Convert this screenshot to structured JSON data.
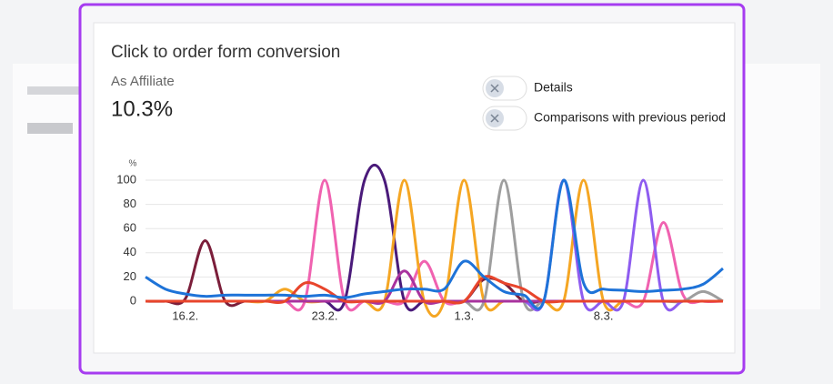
{
  "card": {
    "title": "Click to order form conversion",
    "subtitle": "As Affiliate",
    "value": "10.3%"
  },
  "toggles": [
    {
      "label": "Details"
    },
    {
      "label": "Comparisons with previous period"
    }
  ],
  "chart_data": {
    "type": "line",
    "y_label": "%",
    "categories": [
      null,
      null,
      "16.2.",
      null,
      null,
      null,
      null,
      null,
      null,
      "23.2.",
      null,
      null,
      null,
      null,
      null,
      null,
      "1.3.",
      null,
      null,
      null,
      null,
      null,
      null,
      "8.3.",
      null,
      null,
      null,
      null,
      null,
      null
    ],
    "ylim": [
      0,
      100
    ],
    "yticks": [
      0,
      20,
      40,
      60,
      80,
      100
    ],
    "grid": true,
    "series": [
      {
        "color": "#7b1e3a",
        "values": [
          0,
          0,
          2,
          50,
          0,
          0,
          0,
          0,
          0,
          0,
          0,
          0,
          0,
          0,
          0,
          0,
          0,
          18,
          15,
          0,
          0,
          0,
          0,
          0,
          0,
          0,
          0,
          0,
          0,
          0
        ]
      },
      {
        "color": "#f062b0",
        "values": [
          0,
          0,
          0,
          0,
          0,
          0,
          0,
          0,
          0,
          100,
          0,
          0,
          0,
          0,
          33,
          0,
          0,
          0,
          0,
          0,
          0,
          0,
          0,
          0,
          0,
          0,
          65,
          5,
          0,
          0
        ]
      },
      {
        "color": "#4a1a7a",
        "values": [
          0,
          0,
          0,
          0,
          0,
          0,
          0,
          0,
          0,
          0,
          0,
          100,
          100,
          0,
          0,
          0,
          0,
          0,
          0,
          0,
          0,
          0,
          0,
          0,
          0,
          0,
          0,
          0,
          0,
          0
        ]
      },
      {
        "color": "#f5a623",
        "values": [
          0,
          0,
          0,
          0,
          0,
          0,
          0,
          10,
          0,
          0,
          0,
          0,
          0,
          100,
          0,
          0,
          100,
          0,
          0,
          0,
          0,
          0,
          100,
          0,
          0,
          0,
          0,
          0,
          0,
          0
        ]
      },
      {
        "color": "#9e9e9e",
        "values": [
          0,
          0,
          0,
          0,
          0,
          0,
          0,
          0,
          0,
          0,
          0,
          0,
          0,
          0,
          0,
          0,
          0,
          0,
          100,
          0,
          0,
          0,
          0,
          0,
          0,
          0,
          0,
          0,
          8,
          0
        ]
      },
      {
        "color": "#8e5cf0",
        "values": [
          0,
          0,
          0,
          0,
          0,
          0,
          0,
          0,
          0,
          0,
          0,
          0,
          0,
          0,
          0,
          0,
          0,
          0,
          0,
          0,
          0,
          100,
          0,
          0,
          0,
          100,
          0,
          0,
          0,
          0
        ]
      },
      {
        "color": "#a8329e",
        "values": [
          0,
          0,
          0,
          0,
          0,
          0,
          0,
          0,
          0,
          0,
          0,
          0,
          0,
          25,
          0,
          0,
          0,
          0,
          0,
          0,
          0,
          0,
          0,
          0,
          0,
          0,
          0,
          0,
          0,
          0
        ]
      },
      {
        "color": "#e8452c",
        "values": [
          0,
          0,
          0,
          0,
          0,
          0,
          0,
          0,
          15,
          10,
          0,
          0,
          0,
          0,
          0,
          0,
          0,
          20,
          15,
          10,
          0,
          0,
          0,
          0,
          0,
          0,
          0,
          0,
          0,
          0
        ]
      },
      {
        "color": "#1e73d8",
        "values": [
          20,
          10,
          6,
          4,
          5,
          5,
          5,
          5,
          4,
          5,
          3,
          6,
          8,
          10,
          10,
          10,
          33,
          20,
          8,
          5,
          0,
          100,
          15,
          10,
          9,
          8,
          9,
          10,
          14,
          27
        ]
      }
    ]
  }
}
